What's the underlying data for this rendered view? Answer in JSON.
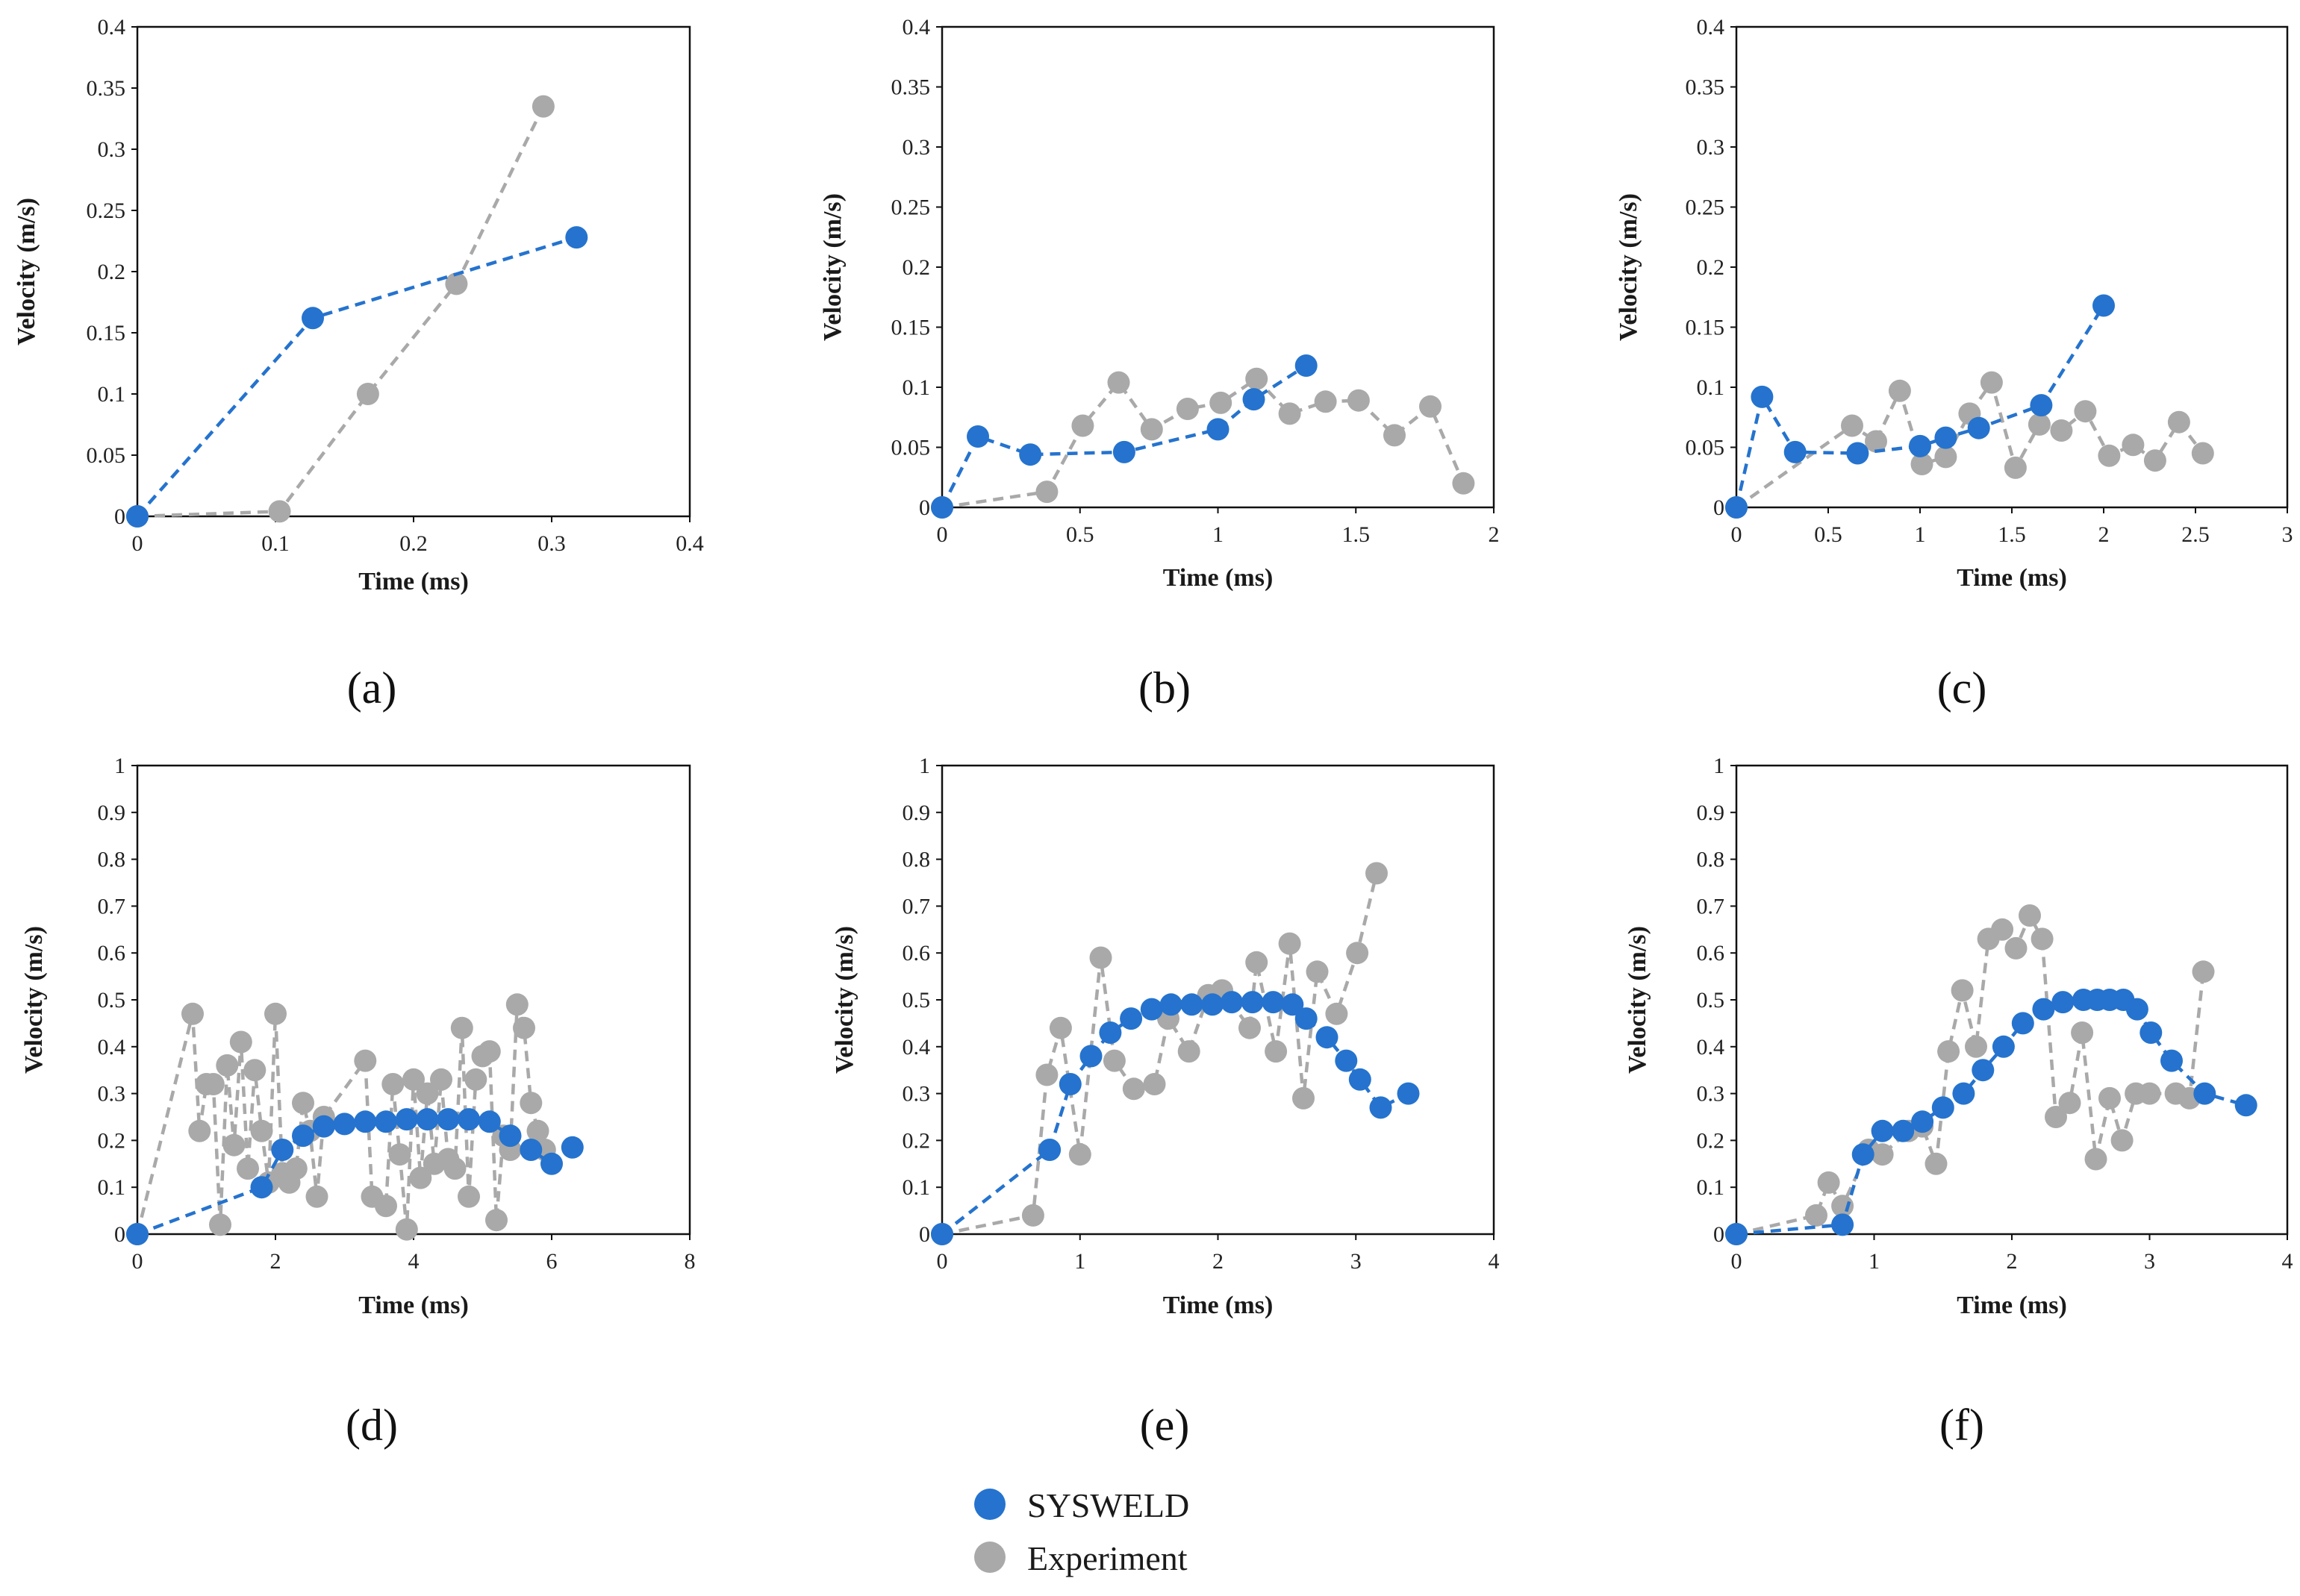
{
  "colors": {
    "sysweld": "#2573CE",
    "experiment": "#A9A9A9"
  },
  "legend": {
    "sysweld_label": "SYSWELD",
    "experiment_label": "Experiment"
  },
  "chart_data": [
    {
      "panel_label": "(a)",
      "type": "line",
      "xlabel": "Time (ms)",
      "ylabel": "Velocity (m/s)",
      "xlim": [
        0,
        0.4
      ],
      "ylim": [
        0,
        0.4
      ],
      "xticks": [
        0,
        0.1,
        0.2,
        0.3,
        0.4
      ],
      "yticks": [
        0,
        0.05,
        0.1,
        0.15,
        0.2,
        0.25,
        0.3,
        0.35,
        0.4
      ],
      "series": [
        {
          "name": "SYSWELD",
          "x": [
            0,
            0.127,
            0.318
          ],
          "y": [
            0,
            0.162,
            0.228
          ]
        },
        {
          "name": "Experiment",
          "x": [
            0,
            0.103,
            0.167,
            0.231,
            0.294
          ],
          "y": [
            0,
            0.004,
            0.1,
            0.19,
            0.335
          ]
        }
      ]
    },
    {
      "panel_label": "(b)",
      "type": "line",
      "xlabel": "Time (ms)",
      "ylabel": "Velocity (m/s)",
      "xlim": [
        0,
        2
      ],
      "ylim": [
        0,
        0.4
      ],
      "xticks": [
        0,
        0.5,
        1,
        1.5,
        2
      ],
      "yticks": [
        0,
        0.05,
        0.1,
        0.15,
        0.2,
        0.25,
        0.3,
        0.35,
        0.4
      ],
      "series": [
        {
          "name": "SYSWELD",
          "x": [
            0,
            0.13,
            0.32,
            0.66,
            1.0,
            1.13,
            1.32
          ],
          "y": [
            0,
            0.059,
            0.044,
            0.046,
            0.065,
            0.09,
            0.118
          ]
        },
        {
          "name": "Experiment",
          "x": [
            0,
            0.38,
            0.51,
            0.64,
            0.76,
            0.89,
            1.01,
            1.14,
            1.26,
            1.39,
            1.51,
            1.64,
            1.77,
            1.89
          ],
          "y": [
            0,
            0.013,
            0.068,
            0.104,
            0.065,
            0.082,
            0.087,
            0.107,
            0.078,
            0.088,
            0.089,
            0.06,
            0.084,
            0.02
          ]
        }
      ]
    },
    {
      "panel_label": "(c)",
      "type": "line",
      "xlabel": "Time (ms)",
      "ylabel": "Velocity (m/s)",
      "xlim": [
        0,
        3
      ],
      "ylim": [
        0,
        0.4
      ],
      "xticks": [
        0,
        0.5,
        1,
        1.5,
        2,
        2.5,
        3
      ],
      "yticks": [
        0,
        0.05,
        0.1,
        0.15,
        0.2,
        0.25,
        0.3,
        0.35,
        0.4
      ],
      "series": [
        {
          "name": "SYSWELD",
          "x": [
            0,
            0.14,
            0.32,
            0.66,
            1.0,
            1.14,
            1.32,
            1.66,
            2.0
          ],
          "y": [
            0,
            0.092,
            0.046,
            0.045,
            0.051,
            0.058,
            0.066,
            0.085,
            0.168
          ]
        },
        {
          "name": "Experiment",
          "x": [
            0,
            0.63,
            0.76,
            0.89,
            1.01,
            1.14,
            1.27,
            1.39,
            1.52,
            1.65,
            1.77,
            1.9,
            2.03,
            2.16,
            2.28,
            2.41,
            2.54
          ],
          "y": [
            0,
            0.068,
            0.055,
            0.097,
            0.036,
            0.042,
            0.078,
            0.104,
            0.033,
            0.069,
            0.064,
            0.08,
            0.043,
            0.052,
            0.039,
            0.071,
            0.045
          ]
        }
      ]
    },
    {
      "panel_label": "(d)",
      "type": "line",
      "xlabel": "Time (ms)",
      "ylabel": "Velocity (m/s)",
      "xlim": [
        0,
        8
      ],
      "ylim": [
        0,
        1
      ],
      "xticks": [
        0,
        2,
        4,
        6,
        8
      ],
      "yticks": [
        0,
        0.1,
        0.2,
        0.3,
        0.4,
        0.5,
        0.6,
        0.7,
        0.8,
        0.9,
        1
      ],
      "series": [
        {
          "name": "SYSWELD",
          "x": [
            0,
            1.8,
            2.1,
            2.4,
            2.7,
            3.0,
            3.3,
            3.6,
            3.9,
            4.2,
            4.5,
            4.8,
            5.1,
            5.4,
            5.7,
            6.0,
            6.3
          ],
          "y": [
            0,
            0.1,
            0.18,
            0.21,
            0.23,
            0.235,
            0.24,
            0.24,
            0.245,
            0.245,
            0.245,
            0.245,
            0.24,
            0.21,
            0.18,
            0.15,
            0.185
          ]
        },
        {
          "name": "Experiment",
          "x": [
            0,
            0.8,
            0.9,
            1.0,
            1.1,
            1.2,
            1.3,
            1.4,
            1.5,
            1.6,
            1.7,
            1.8,
            1.9,
            2.0,
            2.1,
            2.2,
            2.3,
            2.4,
            2.5,
            2.6,
            2.7,
            3.3,
            3.4,
            3.6,
            3.7,
            3.8,
            3.9,
            4.0,
            4.1,
            4.2,
            4.3,
            4.4,
            4.5,
            4.6,
            4.7,
            4.8,
            4.9,
            5.0,
            5.1,
            5.2,
            5.3,
            5.4,
            5.5,
            5.6,
            5.7,
            5.8,
            5.9
          ],
          "y": [
            0,
            0.47,
            0.22,
            0.32,
            0.32,
            0.02,
            0.36,
            0.19,
            0.41,
            0.14,
            0.35,
            0.22,
            0.11,
            0.47,
            0.13,
            0.11,
            0.14,
            0.28,
            0.22,
            0.08,
            0.25,
            0.37,
            0.08,
            0.06,
            0.32,
            0.17,
            0.01,
            0.33,
            0.12,
            0.3,
            0.15,
            0.33,
            0.16,
            0.14,
            0.44,
            0.08,
            0.33,
            0.38,
            0.39,
            0.03,
            0.21,
            0.18,
            0.49,
            0.44,
            0.28,
            0.22,
            0.18
          ]
        }
      ]
    },
    {
      "panel_label": "(e)",
      "type": "line",
      "xlabel": "Time (ms)",
      "ylabel": "Velocity (m/s)",
      "xlim": [
        0,
        4
      ],
      "ylim": [
        0,
        1
      ],
      "xticks": [
        0,
        1,
        2,
        3,
        4
      ],
      "yticks": [
        0,
        0.1,
        0.2,
        0.3,
        0.4,
        0.5,
        0.6,
        0.7,
        0.8,
        0.9,
        1
      ],
      "series": [
        {
          "name": "SYSWELD",
          "x": [
            0,
            0.78,
            0.93,
            1.08,
            1.22,
            1.37,
            1.52,
            1.66,
            1.81,
            1.96,
            2.1,
            2.25,
            2.4,
            2.54,
            2.64,
            2.79,
            2.93,
            3.03,
            3.18,
            3.38
          ],
          "y": [
            0,
            0.18,
            0.32,
            0.38,
            0.43,
            0.46,
            0.48,
            0.49,
            0.49,
            0.49,
            0.495,
            0.495,
            0.495,
            0.49,
            0.46,
            0.42,
            0.37,
            0.33,
            0.27,
            0.3
          ]
        },
        {
          "name": "Experiment",
          "x": [
            0,
            0.66,
            0.76,
            0.86,
            1.0,
            1.15,
            1.25,
            1.39,
            1.54,
            1.64,
            1.79,
            1.93,
            2.03,
            2.23,
            2.28,
            2.42,
            2.52,
            2.62,
            2.72,
            2.86,
            3.01,
            3.15
          ],
          "y": [
            0,
            0.04,
            0.34,
            0.44,
            0.17,
            0.59,
            0.37,
            0.31,
            0.32,
            0.46,
            0.39,
            0.51,
            0.52,
            0.44,
            0.58,
            0.39,
            0.62,
            0.29,
            0.56,
            0.47,
            0.6,
            0.77
          ]
        }
      ]
    },
    {
      "panel_label": "(f)",
      "type": "line",
      "xlabel": "Time (ms)",
      "ylabel": "Velocity (m/s)",
      "xlim": [
        0,
        4
      ],
      "ylim": [
        0,
        1
      ],
      "xticks": [
        0,
        1,
        2,
        3,
        4
      ],
      "yticks": [
        0,
        0.1,
        0.2,
        0.3,
        0.4,
        0.5,
        0.6,
        0.7,
        0.8,
        0.9,
        1
      ],
      "series": [
        {
          "name": "SYSWELD",
          "x": [
            0,
            0.77,
            0.92,
            1.06,
            1.21,
            1.35,
            1.5,
            1.65,
            1.79,
            1.94,
            2.08,
            2.23,
            2.37,
            2.52,
            2.62,
            2.71,
            2.81,
            2.91,
            3.01,
            3.16,
            3.4,
            3.7
          ],
          "y": [
            0,
            0.02,
            0.17,
            0.22,
            0.22,
            0.24,
            0.27,
            0.3,
            0.35,
            0.4,
            0.45,
            0.48,
            0.495,
            0.5,
            0.5,
            0.5,
            0.5,
            0.48,
            0.43,
            0.37,
            0.3,
            0.275
          ]
        },
        {
          "name": "Experiment",
          "x": [
            0,
            0.58,
            0.67,
            0.77,
            0.96,
            1.06,
            1.25,
            1.35,
            1.45,
            1.54,
            1.64,
            1.74,
            1.83,
            1.93,
            2.03,
            2.13,
            2.22,
            2.32,
            2.42,
            2.51,
            2.61,
            2.71,
            2.8,
            2.9,
            3.0,
            3.19,
            3.29,
            3.39
          ],
          "y": [
            0,
            0.04,
            0.11,
            0.06,
            0.18,
            0.17,
            0.22,
            0.23,
            0.15,
            0.39,
            0.52,
            0.4,
            0.63,
            0.65,
            0.61,
            0.68,
            0.63,
            0.25,
            0.28,
            0.43,
            0.16,
            0.29,
            0.2,
            0.3,
            0.3,
            0.3,
            0.29,
            0.56
          ]
        }
      ]
    }
  ]
}
